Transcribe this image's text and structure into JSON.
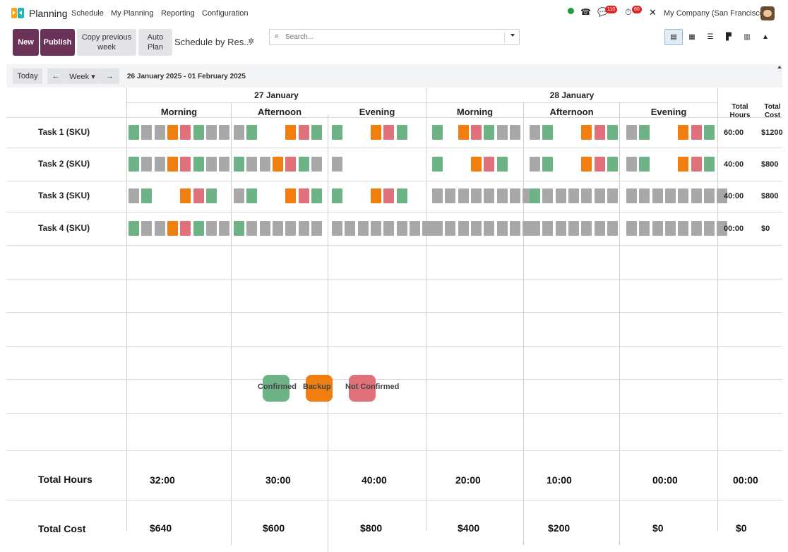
{
  "app": {
    "name": "Planning"
  },
  "menu": {
    "schedule": "Schedule",
    "my_planning": "My Planning",
    "reporting": "Reporting",
    "configuration": "Configuration"
  },
  "systray": {
    "messages_count": "110",
    "activity_count": "60",
    "company": "My Company (San Francisco)"
  },
  "actions": {
    "new": "New",
    "publish": "Publish",
    "copy_previous_week": "Copy previous week",
    "auto_plan": "Auto Plan",
    "schedule_by": "Schedule by Res..."
  },
  "search": {
    "placeholder": "Search..."
  },
  "nav": {
    "today": "Today",
    "prev": "←",
    "week": "Week ▾",
    "next": "→",
    "range": "26 January 2025 - 01 February 2025"
  },
  "days": [
    {
      "label": "27 January"
    },
    {
      "label": "28 January"
    }
  ],
  "shifts": [
    {
      "label": "Morning"
    },
    {
      "label": "Afternoon"
    },
    {
      "label": "Evening"
    },
    {
      "label": "Morning"
    },
    {
      "label": "Afternoon"
    },
    {
      "label": "Evening"
    }
  ],
  "totals_header": {
    "hours": "Total Hours",
    "cost": "Total Cost"
  },
  "colors": {
    "confirmed": "#6db386",
    "backup": "#f17f0f",
    "not_confirmed": "#e0707a",
    "empty": "#a8a8a8",
    "accent": "#6b3258"
  },
  "tasks": [
    {
      "name": "Task 1 (SKU)",
      "total_hours": "60:00",
      "total_cost": "$1200",
      "shifts": [
        [
          "C",
          "E",
          "E",
          "B",
          "N",
          "C",
          "E",
          "E"
        ],
        [
          "E",
          "C",
          "_",
          "_",
          "B",
          "N",
          "C"
        ],
        [
          "C",
          "_",
          "_",
          "B",
          "N",
          "C"
        ],
        [
          "C",
          "_",
          "B",
          "N",
          "C",
          "E",
          "E"
        ],
        [
          "E",
          "C",
          "_",
          "_",
          "B",
          "N",
          "C"
        ],
        [
          "E",
          "C",
          "_",
          "_",
          "B",
          "N",
          "C"
        ]
      ]
    },
    {
      "name": "Task 2 (SKU)",
      "total_hours": "40:00",
      "total_cost": "$800",
      "shifts": [
        [
          "C",
          "E",
          "E",
          "B",
          "N",
          "C",
          "E",
          "E"
        ],
        [
          "C",
          "E",
          "E",
          "B",
          "N",
          "C",
          "E"
        ],
        [
          "E",
          "_",
          "_",
          "_",
          "_",
          "_",
          "_"
        ],
        [
          "C",
          "_",
          "_",
          "B",
          "N",
          "C",
          "_"
        ],
        [
          "E",
          "C",
          "_",
          "_",
          "B",
          "N",
          "C"
        ],
        [
          "E",
          "C",
          "_",
          "_",
          "B",
          "N",
          "C"
        ]
      ]
    },
    {
      "name": "Task 3 (SKU)",
      "total_hours": "40:00",
      "total_cost": "$800",
      "shifts": [
        [
          "E",
          "C",
          "_",
          "_",
          "B",
          "N",
          "C"
        ],
        [
          "E",
          "C",
          "_",
          "_",
          "B",
          "N",
          "C"
        ],
        [
          "C",
          "_",
          "_",
          "B",
          "N",
          "C"
        ],
        [
          "E",
          "E",
          "E",
          "E",
          "E",
          "E",
          "E",
          "E"
        ],
        [
          "C",
          "E",
          "E",
          "E",
          "E",
          "E",
          "E"
        ],
        [
          "E",
          "E",
          "E",
          "E",
          "E",
          "E",
          "E",
          "E"
        ]
      ]
    },
    {
      "name": "Task 4 (SKU)",
      "total_hours": "00:00",
      "total_cost": "$0",
      "shifts": [
        [
          "C",
          "E",
          "E",
          "B",
          "N",
          "C",
          "E",
          "E"
        ],
        [
          "C",
          "E",
          "E",
          "E",
          "E",
          "E",
          "E"
        ],
        [
          "E",
          "E",
          "E",
          "E",
          "E",
          "E",
          "E",
          "E"
        ],
        [
          "E",
          "E",
          "E",
          "E",
          "E",
          "E",
          "E",
          "E"
        ],
        [
          "E",
          "E",
          "E",
          "E",
          "E",
          "E",
          "E"
        ],
        [
          "E",
          "E",
          "E",
          "E",
          "E",
          "E",
          "E",
          "E"
        ]
      ]
    }
  ],
  "legend": {
    "confirmed": "Confirmed",
    "backup": "Backup",
    "not_confirmed": "Not Confirmed"
  },
  "footer": {
    "total_hours_label": "Total Hours",
    "total_cost_label": "Total Cost",
    "hours": [
      "32:00",
      "30:00",
      "40:00",
      "20:00",
      "10:00",
      "00:00",
      "00:00"
    ],
    "costs": [
      "$640",
      "$600",
      "$800",
      "$400",
      "$200",
      "$0",
      "$0"
    ]
  }
}
